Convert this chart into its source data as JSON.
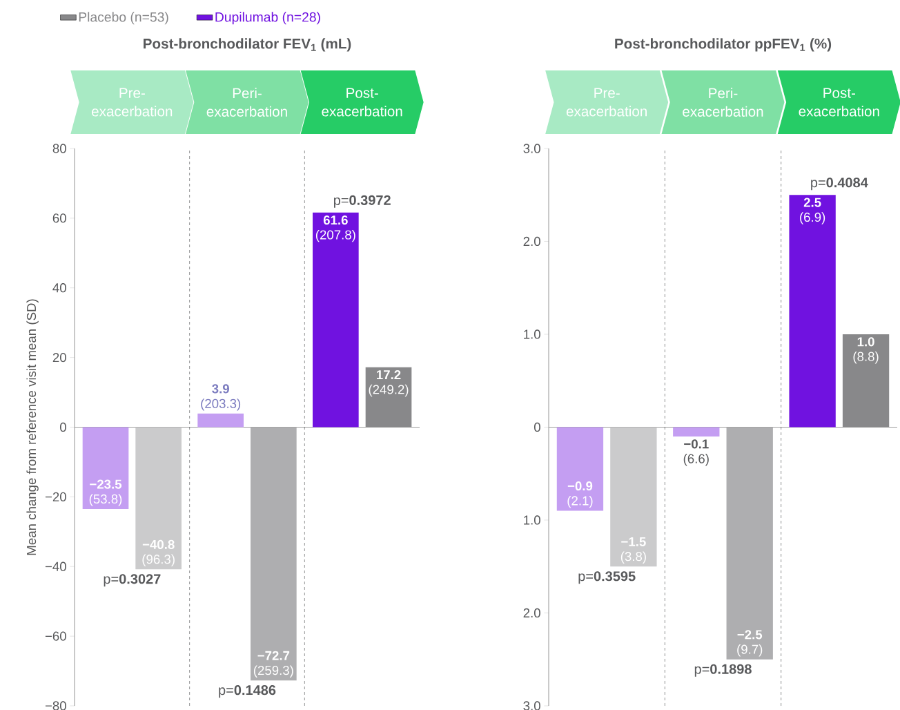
{
  "chart_data": [
    {
      "type": "bar",
      "title": "Post-bronchodilator FEV$_{1}$ (mL)",
      "ylabel": "Mean change from reference visit mean (SD)",
      "categories": [
        "Pre-exacerbation",
        "Peri-exacerbation",
        "Post-exacerbation"
      ],
      "series": [
        {
          "name": "Dupilumab (n=28)",
          "color": "#7012e0",
          "colors": [
            "#c49ef2",
            "#c49ef2",
            "#7012e0"
          ],
          "values": [
            -23.5,
            3.9,
            61.6
          ],
          "value_labels": [
            "**−23.5** (53.8)",
            "**3.9** (203.3)",
            "**61.6** (207.8)"
          ]
        },
        {
          "name": "Placebo (n=53)",
          "color": "#88888a",
          "colors": [
            "#cbcbcc",
            "#aeaeb0",
            "#88888a"
          ],
          "values": [
            -40.8,
            -72.7,
            17.2
          ],
          "value_labels": [
            "**−40.8** (96.3)",
            "**−72.7** (259.3)",
            "**17.2** (249.2)"
          ]
        }
      ],
      "ylim": [
        -80,
        80
      ],
      "yticks": [
        {
          "value": -80,
          "label": "−80"
        },
        {
          "value": -60,
          "label": "−60"
        },
        {
          "value": -40,
          "label": "−40"
        },
        {
          "value": -20,
          "label": "−20"
        },
        0,
        20,
        40,
        60,
        80
      ],
      "legend": "top left",
      "annotations": [
        "p=**0.3027**",
        "p=**0.1486**",
        "p=**0.3972**"
      ]
    },
    {
      "type": "bar",
      "title": "Post-bronchodilator ppFEV$_{1}$ (%)",
      "categories": [
        "Pre-exacerbation",
        "Peri-exacerbation",
        "Post-exacerbation"
      ],
      "series": [
        {
          "colors": [
            "#c49ef2",
            "#c49ef2",
            "#7012e0"
          ],
          "values": [
            -0.9,
            -0.1,
            2.5
          ],
          "value_labels": [
            "**−0.9** (2.1)",
            "**−0.1** (6.6)",
            "**2.5** (6.9)"
          ]
        },
        {
          "colors": [
            "#cbcbcc",
            "#aeaeb0",
            "#88888a"
          ],
          "values": [
            -1.5,
            -2.5,
            1.0
          ],
          "value_labels": [
            "**−1.5** (3.8)",
            "**−2.5** (9.7)",
            "**1.0** (8.8)"
          ]
        }
      ],
      "ylim": [
        -3,
        3
      ],
      "yticks": [
        {
          "value": -3,
          "label": "3.0"
        },
        {
          "value": -2,
          "label": "2.0"
        },
        {
          "value": -1,
          "label": "1.0"
        },
        0,
        {
          "value": 1,
          "label": "1.0"
        },
        {
          "value": 2,
          "label": "2.0"
        },
        {
          "value": 3,
          "label": "3.0"
        }
      ],
      "annotations": [
        "p=**0.3595**",
        "p=**0.1898**",
        "p=**0.4084**"
      ]
    }
  ]
}
